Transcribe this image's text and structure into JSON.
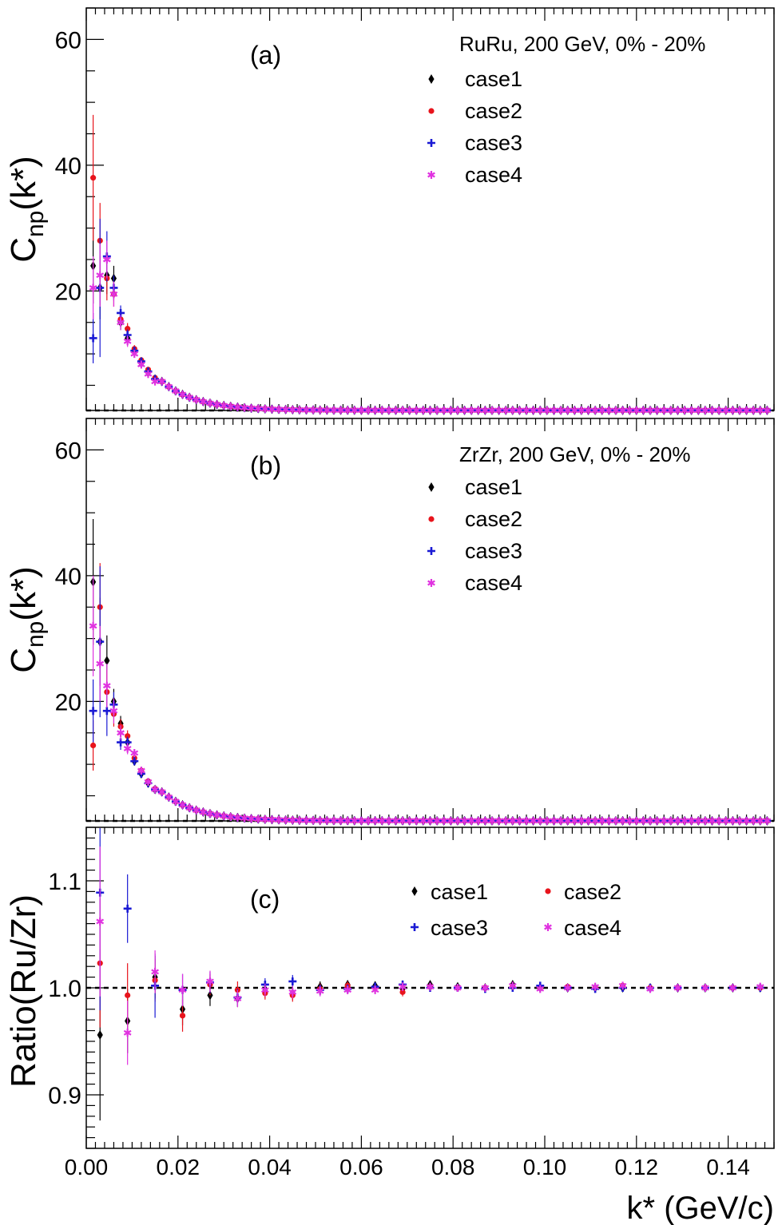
{
  "chart_data": [
    {
      "type": "scatter",
      "panel_label": "(a)",
      "system_label": "RuRu, 200 GeV, 0% - 20%",
      "ylabel_main": "C",
      "ylabel_sub": "np",
      "ylabel_tail": "(k*)",
      "xlim": [
        0,
        0.15
      ],
      "ylim": [
        1,
        65
      ],
      "yticks": [
        20,
        40,
        60
      ],
      "ytick_labels": [
        "20",
        "40",
        "60"
      ],
      "reference_y": 1.0,
      "series": [
        {
          "name": "case1",
          "marker": "diamond",
          "color": "#000000",
          "x": [
            0.0015,
            0.003,
            0.0045,
            0.006,
            0.0075,
            0.009,
            0.0105,
            0.012,
            0.0135,
            0.015
          ],
          "y": [
            24.0,
            20.5,
            22.5,
            22.0,
            15.0,
            12.5,
            10.5,
            8.5,
            7.0,
            6.0
          ],
          "err": [
            6.0,
            5.0,
            3.0,
            2.0,
            1.2,
            0.9,
            0.6,
            0.5,
            0.4,
            0.3
          ]
        },
        {
          "name": "case2",
          "marker": "circle",
          "color": "#e8141c",
          "x": [
            0.0015,
            0.003,
            0.0045,
            0.006,
            0.0075,
            0.009,
            0.0105,
            0.012,
            0.0135,
            0.015
          ],
          "y": [
            38.0,
            28.0,
            22.0,
            19.5,
            15.5,
            14.0,
            10.8,
            9.0,
            7.5,
            6.2
          ],
          "err": [
            10.0,
            6.0,
            3.5,
            2.0,
            1.2,
            0.9,
            0.6,
            0.5,
            0.4,
            0.3
          ]
        },
        {
          "name": "case3",
          "marker": "plus",
          "color": "#1a1ad4",
          "x": [
            0.0015,
            0.003,
            0.0045,
            0.006,
            0.0075,
            0.009,
            0.0105,
            0.012,
            0.0135,
            0.015
          ],
          "y": [
            12.5,
            20.5,
            25.5,
            20.5,
            16.5,
            13.0,
            10.5,
            8.8,
            7.2,
            6.0
          ],
          "err": [
            4.0,
            11.0,
            4.0,
            2.0,
            1.2,
            0.9,
            0.6,
            0.5,
            0.4,
            0.3
          ]
        },
        {
          "name": "case4",
          "marker": "star",
          "color": "#e033e0",
          "x": [
            0.0015,
            0.003,
            0.0045,
            0.006,
            0.0075,
            0.009,
            0.0105,
            0.012,
            0.0135,
            0.015
          ],
          "y": [
            20.5,
            22.5,
            25.0,
            19.5,
            15.0,
            12.0,
            10.0,
            8.3,
            6.8,
            5.6
          ],
          "err": [
            5.0,
            5.0,
            3.0,
            2.0,
            1.2,
            0.9,
            0.6,
            0.5,
            0.4,
            0.3
          ]
        }
      ],
      "tail": {
        "x_start": 0.0165,
        "x_step": 0.0015,
        "x_end": 0.1485,
        "amplitude": 5.6,
        "decay": 0.0075,
        "baseline": 1.02
      }
    },
    {
      "type": "scatter",
      "panel_label": "(b)",
      "system_label": "ZrZr, 200 GeV, 0% - 20%",
      "ylabel_main": "C",
      "ylabel_sub": "np",
      "ylabel_tail": "(k*)",
      "xlim": [
        0,
        0.15
      ],
      "ylim": [
        1,
        65
      ],
      "yticks": [
        20,
        40,
        60
      ],
      "ytick_labels": [
        "20",
        "40",
        "60"
      ],
      "reference_y": 1.0,
      "series": [
        {
          "name": "case1",
          "marker": "diamond",
          "color": "#000000",
          "x": [
            0.0015,
            0.003,
            0.0045,
            0.006,
            0.0075,
            0.009,
            0.0105,
            0.012,
            0.0135,
            0.015
          ],
          "y": [
            39.0,
            29.5,
            26.5,
            20.0,
            16.5,
            13.5,
            10.5,
            8.5,
            7.0,
            6.0
          ],
          "err": [
            10.0,
            7.0,
            4.0,
            2.0,
            1.2,
            0.9,
            0.6,
            0.5,
            0.4,
            0.3
          ]
        },
        {
          "name": "case2",
          "marker": "circle",
          "color": "#e8141c",
          "x": [
            0.0015,
            0.003,
            0.0045,
            0.006,
            0.0075,
            0.009,
            0.0105,
            0.012,
            0.0135,
            0.015
          ],
          "y": [
            13.0,
            35.0,
            21.5,
            18.0,
            16.0,
            14.5,
            11.0,
            9.0,
            7.3,
            6.1
          ],
          "err": [
            4.0,
            7.0,
            3.5,
            2.0,
            1.2,
            0.9,
            0.6,
            0.5,
            0.4,
            0.3
          ]
        },
        {
          "name": "case3",
          "marker": "plus",
          "color": "#1a1ad4",
          "x": [
            0.0015,
            0.003,
            0.0045,
            0.006,
            0.0075,
            0.009,
            0.0105,
            0.012,
            0.0135,
            0.015
          ],
          "y": [
            18.5,
            29.5,
            18.5,
            19.5,
            13.5,
            13.5,
            10.5,
            8.5,
            7.0,
            6.0
          ],
          "err": [
            5.0,
            12.0,
            4.0,
            2.0,
            1.2,
            0.9,
            0.6,
            0.5,
            0.4,
            0.3
          ]
        },
        {
          "name": "case4",
          "marker": "star",
          "color": "#e033e0",
          "x": [
            0.0015,
            0.003,
            0.0045,
            0.006,
            0.0075,
            0.009,
            0.0105,
            0.012,
            0.0135,
            0.015
          ],
          "y": [
            32.0,
            26.0,
            22.5,
            18.5,
            15.0,
            12.5,
            11.8,
            9.0,
            7.2,
            6.0
          ],
          "err": [
            8.0,
            6.0,
            3.5,
            2.0,
            1.2,
            0.9,
            0.6,
            0.5,
            0.4,
            0.3
          ]
        }
      ],
      "tail": {
        "x_start": 0.0165,
        "x_step": 0.0015,
        "x_end": 0.1485,
        "amplitude": 5.6,
        "decay": 0.0075,
        "baseline": 1.02
      }
    },
    {
      "type": "scatter",
      "panel_label": "(c)",
      "ylabel": "Ratio(Ru/Zr)",
      "xlabel": "k* (GeV/c)",
      "xlim": [
        0,
        0.15
      ],
      "ylim": [
        0.85,
        1.15
      ],
      "xticks": [
        0.0,
        0.02,
        0.04,
        0.06,
        0.08,
        0.1,
        0.12,
        0.14
      ],
      "xtick_labels": [
        "0.00",
        "0.02",
        "0.04",
        "0.06",
        "0.08",
        "0.10",
        "0.12",
        "0.14"
      ],
      "yticks": [
        0.9,
        1.0,
        1.1
      ],
      "ytick_labels": [
        "0.9",
        "1.0",
        "1.1"
      ],
      "reference_y": 1.0,
      "legend_columns": 2,
      "series": [
        {
          "name": "case1",
          "marker": "diamond",
          "color": "#000000",
          "x": [
            0.003,
            0.009,
            0.015,
            0.021,
            0.027,
            0.033,
            0.039,
            0.045,
            0.051,
            0.057,
            0.063,
            0.069,
            0.075,
            0.081,
            0.087,
            0.093,
            0.099,
            0.105,
            0.111,
            0.117,
            0.123,
            0.129,
            0.135,
            0.141,
            0.147
          ],
          "y": [
            0.956,
            0.969,
            1.01,
            0.98,
            0.993,
            0.99,
            0.997,
            0.995,
            1.001,
            1.003,
            1.002,
            0.999,
            1.003,
            1.001,
            1.0,
            1.003,
            1.0,
            1.0,
            1.0,
            1.0,
            1.0,
            1.0,
            1.0,
            1.0,
            1.0
          ],
          "err": [
            0.08,
            0.03,
            0.02,
            0.015,
            0.01,
            0.008,
            0.006,
            0.006,
            0.005,
            0.004,
            0.004,
            0.004,
            0.003,
            0.003,
            0.003,
            0.003,
            0.003,
            0.003,
            0.003,
            0.003,
            0.003,
            0.003,
            0.003,
            0.003,
            0.003
          ]
        },
        {
          "name": "case2",
          "marker": "circle",
          "color": "#e8141c",
          "x": [
            0.003,
            0.009,
            0.015,
            0.021,
            0.027,
            0.033,
            0.039,
            0.045,
            0.051,
            0.057,
            0.063,
            0.069,
            0.075,
            0.081,
            0.087,
            0.093,
            0.099,
            0.105,
            0.111,
            0.117,
            0.123,
            0.129,
            0.135,
            0.141,
            0.147
          ],
          "y": [
            1.023,
            0.993,
            1.007,
            0.974,
            1.003,
            0.998,
            0.995,
            0.993,
            0.999,
            1.002,
            1.0,
            0.996,
            1.001,
            1.0,
            1.0,
            1.001,
            1.0,
            1.001,
            1.0,
            1.002,
            1.0,
            1.0,
            1.0,
            1.0,
            1.0
          ],
          "err": [
            0.06,
            0.03,
            0.02,
            0.015,
            0.01,
            0.008,
            0.006,
            0.006,
            0.005,
            0.004,
            0.004,
            0.004,
            0.003,
            0.003,
            0.003,
            0.003,
            0.003,
            0.003,
            0.003,
            0.003,
            0.003,
            0.003,
            0.003,
            0.003,
            0.003
          ]
        },
        {
          "name": "case3",
          "marker": "plus",
          "color": "#1a1ad4",
          "x": [
            0.003,
            0.009,
            0.015,
            0.021,
            0.027,
            0.033,
            0.039,
            0.045,
            0.051,
            0.057,
            0.063,
            0.069,
            0.075,
            0.081,
            0.087,
            0.093,
            0.099,
            0.105,
            0.111,
            0.117,
            0.123,
            0.129,
            0.135,
            0.141,
            0.147
          ],
          "y": [
            1.089,
            1.074,
            1.002,
            0.998,
            1.005,
            0.991,
            1.003,
            1.006,
            0.998,
            0.999,
            1.001,
            1.003,
            1.0,
            1.0,
            0.999,
            1.0,
            1.002,
            1.0,
            0.999,
            1.0,
            1.0,
            1.0,
            1.0,
            1.0,
            1.0
          ],
          "err": [
            0.11,
            0.032,
            0.03,
            0.015,
            0.01,
            0.008,
            0.006,
            0.006,
            0.005,
            0.004,
            0.004,
            0.004,
            0.003,
            0.003,
            0.003,
            0.003,
            0.003,
            0.003,
            0.003,
            0.003,
            0.003,
            0.003,
            0.003,
            0.003,
            0.003
          ]
        },
        {
          "name": "case4",
          "marker": "star",
          "color": "#e033e0",
          "x": [
            0.003,
            0.009,
            0.015,
            0.021,
            0.027,
            0.033,
            0.039,
            0.045,
            0.051,
            0.057,
            0.063,
            0.069,
            0.075,
            0.081,
            0.087,
            0.093,
            0.099,
            0.105,
            0.111,
            0.117,
            0.123,
            0.129,
            0.135,
            0.141,
            0.147
          ],
          "y": [
            1.062,
            0.958,
            1.015,
            0.998,
            1.006,
            0.99,
            0.998,
            0.996,
            0.997,
            0.998,
            0.998,
            1.001,
            1.001,
            1.0,
            1.0,
            1.002,
            0.999,
            1.0,
            1.001,
            1.002,
            0.999,
            1.0,
            1.0,
            1.0,
            1.001
          ],
          "err": [
            0.07,
            0.03,
            0.02,
            0.015,
            0.01,
            0.008,
            0.006,
            0.006,
            0.005,
            0.004,
            0.004,
            0.004,
            0.003,
            0.003,
            0.003,
            0.003,
            0.003,
            0.003,
            0.003,
            0.003,
            0.003,
            0.003,
            0.003,
            0.003,
            0.003
          ]
        }
      ]
    }
  ]
}
